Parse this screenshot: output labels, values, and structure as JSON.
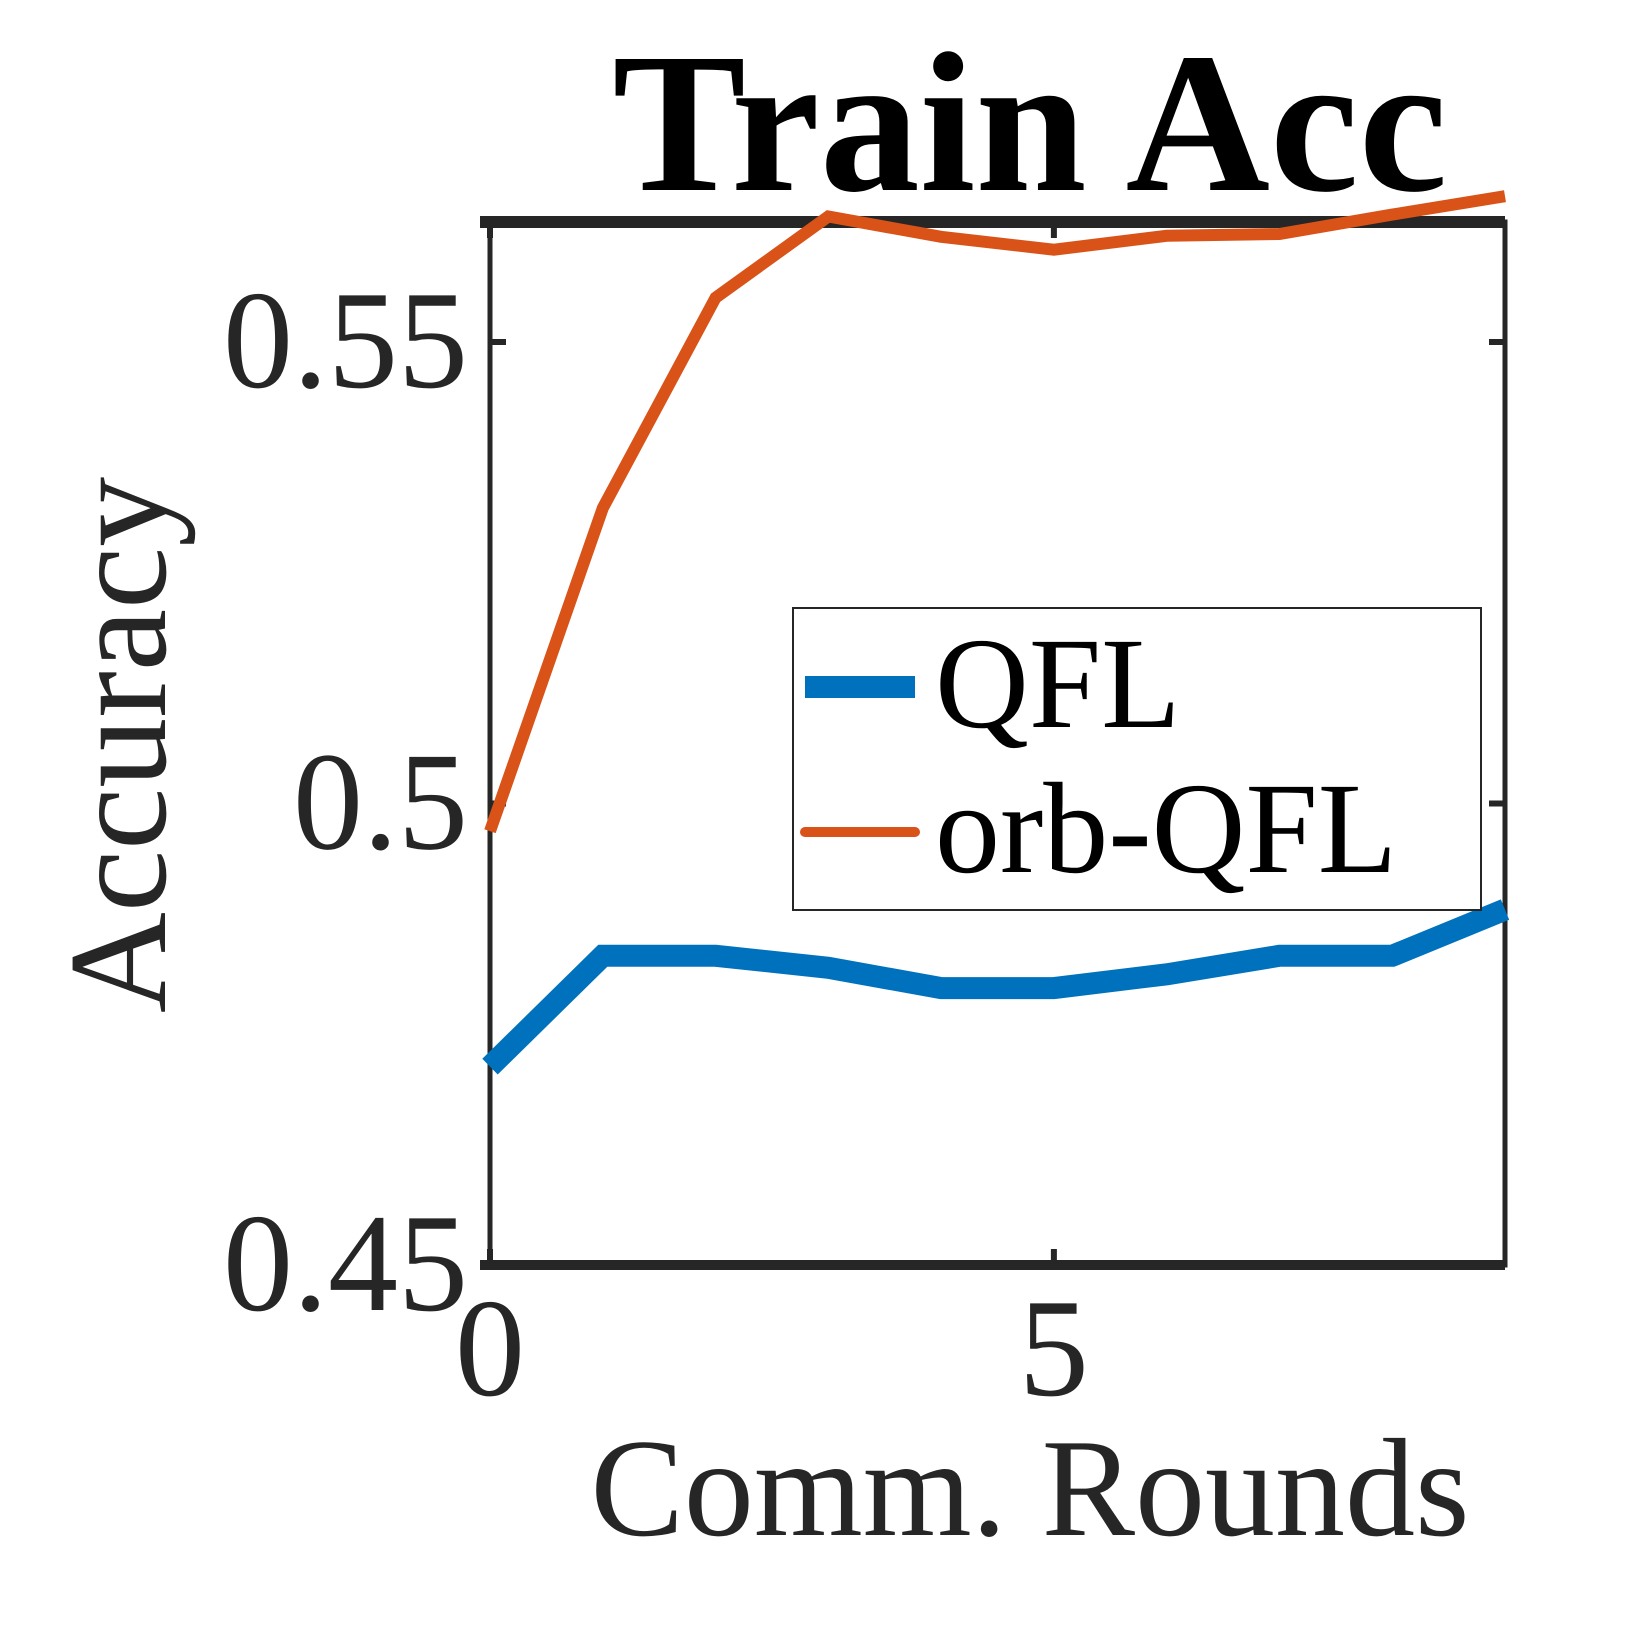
{
  "chart_data": {
    "type": "line",
    "title": "Train Acc",
    "xlabel": "Comm. Rounds",
    "ylabel": "Accuracy",
    "xlim": [
      0,
      9
    ],
    "ylim": [
      0.45,
      0.563
    ],
    "x_ticks": [
      0,
      5
    ],
    "x_tick_labels": [
      "0",
      "5"
    ],
    "y_ticks": [
      0.45,
      0.5,
      0.55
    ],
    "y_tick_labels": [
      "0.45",
      "0.5",
      "0.55"
    ],
    "x": [
      0,
      1,
      2,
      3,
      4,
      5,
      6,
      7,
      8,
      9
    ],
    "series": [
      {
        "name": "QFL",
        "color": "#0072BD",
        "values": [
          0.4715,
          0.4835,
          0.4835,
          0.4822,
          0.48,
          0.48,
          0.4815,
          0.4835,
          0.4835,
          0.4885
        ]
      },
      {
        "name": "orb-QFL",
        "color": "#D95319",
        "values": [
          0.497,
          0.532,
          0.5548,
          0.5636,
          0.5614,
          0.56,
          0.5615,
          0.5617,
          0.5638,
          0.5658
        ]
      }
    ],
    "legend": {
      "placement": "center-right",
      "entries": [
        "QFL",
        "orb-QFL"
      ]
    },
    "grid": false
  }
}
